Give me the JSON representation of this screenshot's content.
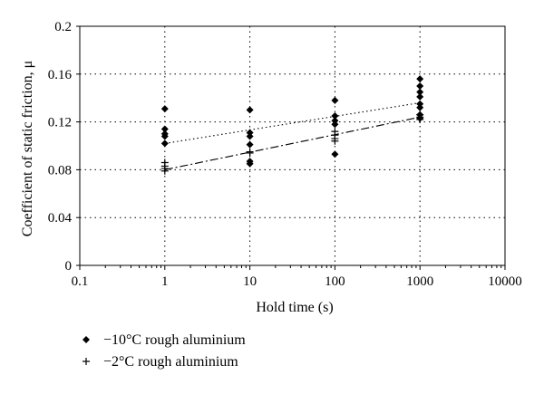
{
  "chart_data": {
    "type": "scatter",
    "xlabel": "Hold time (s)",
    "ylabel": "Coefficient of static friction, μ",
    "x_scale": "log",
    "xlim": [
      0.1,
      10000
    ],
    "ylim": [
      0,
      0.2
    ],
    "x_ticks": [
      "0.1",
      "1",
      "10",
      "100",
      "1000",
      "10000"
    ],
    "x_tick_values": [
      0.1,
      1,
      10,
      100,
      1000,
      10000
    ],
    "y_ticks": [
      "0",
      "0.04",
      "0.08",
      "0.12",
      "0.16",
      "0.2"
    ],
    "y_tick_values": [
      0,
      0.04,
      0.08,
      0.12,
      0.16,
      0.2
    ],
    "grid": "dotted",
    "legend_position": "bottom-left",
    "series": [
      {
        "name": "−10°C rough aluminium",
        "marker": "diamond",
        "color": "#000000",
        "points": [
          [
            1,
            0.131
          ],
          [
            1,
            0.114
          ],
          [
            1,
            0.11
          ],
          [
            1,
            0.108
          ],
          [
            1,
            0.102
          ],
          [
            10,
            0.13
          ],
          [
            10,
            0.111
          ],
          [
            10,
            0.108
          ],
          [
            10,
            0.101
          ],
          [
            10,
            0.087
          ],
          [
            10,
            0.085
          ],
          [
            100,
            0.138
          ],
          [
            100,
            0.125
          ],
          [
            100,
            0.121
          ],
          [
            100,
            0.118
          ],
          [
            100,
            0.093
          ],
          [
            1000,
            0.156
          ],
          [
            1000,
            0.15
          ],
          [
            1000,
            0.145
          ],
          [
            1000,
            0.141
          ],
          [
            1000,
            0.135
          ],
          [
            1000,
            0.132
          ],
          [
            1000,
            0.126
          ],
          [
            1000,
            0.123
          ]
        ],
        "trendline": {
          "style": "dotted",
          "from": [
            1,
            0.102
          ],
          "to": [
            1000,
            0.136
          ]
        }
      },
      {
        "name": "−2°C rough aluminium",
        "marker": "plus",
        "color": "#000000",
        "points": [
          [
            1,
            0.086
          ],
          [
            1,
            0.083
          ],
          [
            1,
            0.081
          ],
          [
            1,
            0.079
          ],
          [
            10,
            0.095
          ],
          [
            10,
            0.094
          ],
          [
            100,
            0.112
          ],
          [
            100,
            0.109
          ],
          [
            100,
            0.106
          ],
          [
            100,
            0.104
          ],
          [
            1000,
            0.126
          ],
          [
            1000,
            0.124
          ],
          [
            1000,
            0.122
          ]
        ],
        "trendline": {
          "style": "dash-dot",
          "from": [
            1,
            0.08
          ],
          "to": [
            1000,
            0.124
          ]
        }
      }
    ]
  }
}
